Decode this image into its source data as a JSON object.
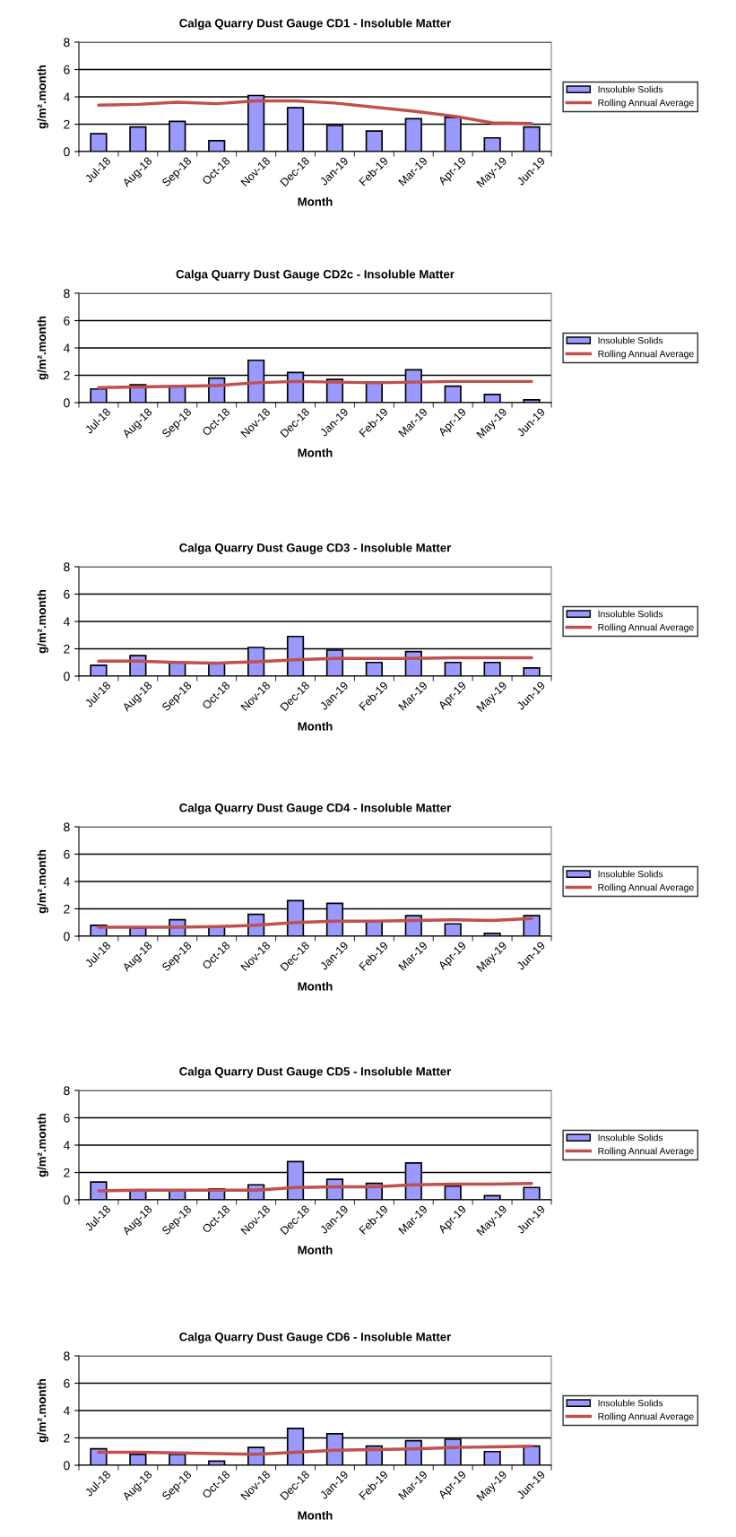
{
  "chart_data": [
    {
      "type": "bar",
      "title": "Calga Quarry Dust Gauge CD1 - Insoluble Matter",
      "xlabel": "Month",
      "ylabel": "g/m².month",
      "categories": [
        "Jul-18",
        "Aug-18",
        "Sep-18",
        "Oct-18",
        "Nov-18",
        "Dec-18",
        "Jan-19",
        "Feb-19",
        "Mar-19",
        "Apr-19",
        "May-19",
        "Jun-19"
      ],
      "ylim": [
        0,
        8
      ],
      "yticks": [
        0,
        2,
        4,
        6,
        8
      ],
      "grid": "y",
      "legend": "right",
      "series": [
        {
          "name": "Insoluble Solids",
          "color": "#9999ff",
          "values": [
            1.3,
            1.8,
            2.2,
            0.8,
            4.1,
            3.2,
            1.9,
            1.5,
            2.4,
            2.5,
            1.0,
            1.8
          ]
        },
        {
          "name": "Rolling Annual Average",
          "type": "line",
          "color": "#c0504d",
          "values": [
            3.4,
            3.45,
            3.6,
            3.5,
            3.7,
            3.7,
            3.55,
            3.25,
            2.95,
            2.6,
            2.1,
            2.05
          ]
        }
      ]
    },
    {
      "type": "bar",
      "title": "Calga Quarry Dust Gauge CD2c - Insoluble Matter",
      "xlabel": "Month",
      "ylabel": "g/m².month",
      "categories": [
        "Jul-18",
        "Aug-18",
        "Sep-18",
        "Oct-18",
        "Nov-18",
        "Dec-18",
        "Jan-19",
        "Feb-19",
        "Mar-19",
        "Apr-19",
        "May-19",
        "Jun-19"
      ],
      "ylim": [
        0,
        8
      ],
      "yticks": [
        0,
        2,
        4,
        6,
        8
      ],
      "grid": "y",
      "legend": "right",
      "series": [
        {
          "name": "Insoluble Solids",
          "color": "#9999ff",
          "values": [
            1.0,
            1.3,
            1.2,
            1.8,
            3.1,
            2.2,
            1.7,
            1.5,
            2.4,
            1.2,
            0.6,
            0.2
          ]
        },
        {
          "name": "Rolling Annual Average",
          "type": "line",
          "color": "#c0504d",
          "values": [
            1.1,
            1.15,
            1.2,
            1.25,
            1.45,
            1.55,
            1.5,
            1.45,
            1.5,
            1.55,
            1.55,
            1.55
          ]
        }
      ]
    },
    {
      "type": "bar",
      "title": "Calga Quarry Dust Gauge CD3 - Insoluble Matter",
      "xlabel": "Month",
      "ylabel": "g/m².month",
      "categories": [
        "Jul-18",
        "Aug-18",
        "Sep-18",
        "Oct-18",
        "Nov-18",
        "Dec-18",
        "Jan-19",
        "Feb-19",
        "Mar-19",
        "Apr-19",
        "May-19",
        "Jun-19"
      ],
      "ylim": [
        0,
        8
      ],
      "yticks": [
        0,
        2,
        4,
        6,
        8
      ],
      "grid": "y",
      "legend": "right",
      "series": [
        {
          "name": "Insoluble Solids",
          "color": "#9999ff",
          "values": [
            0.8,
            1.5,
            1.0,
            0.9,
            2.1,
            2.9,
            1.9,
            1.0,
            1.8,
            1.0,
            1.0,
            0.6
          ]
        },
        {
          "name": "Rolling Annual Average",
          "type": "line",
          "color": "#c0504d",
          "values": [
            1.1,
            1.1,
            1.0,
            0.95,
            1.05,
            1.2,
            1.3,
            1.3,
            1.3,
            1.35,
            1.35,
            1.35
          ]
        }
      ]
    },
    {
      "type": "bar",
      "title": "Calga Quarry Dust Gauge CD4 - Insoluble Matter",
      "xlabel": "Month",
      "ylabel": "g/m².month",
      "categories": [
        "Jul-18",
        "Aug-18",
        "Sep-18",
        "Oct-18",
        "Nov-18",
        "Dec-18",
        "Jan-19",
        "Feb-19",
        "Mar-19",
        "Apr-19",
        "May-19",
        "Jun-19"
      ],
      "ylim": [
        0,
        8
      ],
      "yticks": [
        0,
        2,
        4,
        6,
        8
      ],
      "grid": "y",
      "legend": "right",
      "series": [
        {
          "name": "Insoluble Solids",
          "color": "#9999ff",
          "values": [
            0.8,
            0.6,
            1.2,
            0.7,
            1.6,
            2.6,
            2.4,
            1.1,
            1.5,
            0.9,
            0.2,
            1.5
          ]
        },
        {
          "name": "Rolling Annual Average",
          "type": "line",
          "color": "#c0504d",
          "values": [
            0.65,
            0.65,
            0.65,
            0.7,
            0.8,
            1.0,
            1.1,
            1.1,
            1.15,
            1.2,
            1.15,
            1.3
          ]
        }
      ]
    },
    {
      "type": "bar",
      "title": "Calga Quarry Dust Gauge CD5 - Insoluble Matter",
      "xlabel": "Month",
      "ylabel": "g/m².month",
      "categories": [
        "Jul-18",
        "Aug-18",
        "Sep-18",
        "Oct-18",
        "Nov-18",
        "Dec-18",
        "Jan-19",
        "Feb-19",
        "Mar-19",
        "Apr-19",
        "May-19",
        "Jun-19"
      ],
      "ylim": [
        0,
        8
      ],
      "yticks": [
        0,
        2,
        4,
        6,
        8
      ],
      "grid": "y",
      "legend": "right",
      "series": [
        {
          "name": "Insoluble Solids",
          "color": "#9999ff",
          "values": [
            1.3,
            0.7,
            0.7,
            0.8,
            1.1,
            2.8,
            1.5,
            1.2,
            2.7,
            1.0,
            0.3,
            0.9
          ]
        },
        {
          "name": "Rolling Annual Average",
          "type": "line",
          "color": "#c0504d",
          "values": [
            0.65,
            0.7,
            0.7,
            0.7,
            0.7,
            0.9,
            0.95,
            0.95,
            1.1,
            1.15,
            1.15,
            1.2
          ]
        }
      ]
    },
    {
      "type": "bar",
      "title": "Calga Quarry Dust Gauge CD6 - Insoluble Matter",
      "xlabel": "Month",
      "ylabel": "g/m².month",
      "categories": [
        "Jul-18",
        "Aug-18",
        "Sep-18",
        "Oct-18",
        "Nov-18",
        "Dec-18",
        "Jan-19",
        "Feb-19",
        "Mar-19",
        "Apr-19",
        "May-19",
        "Jun-19"
      ],
      "ylim": [
        0,
        8
      ],
      "yticks": [
        0,
        2,
        4,
        6,
        8
      ],
      "grid": "y",
      "legend": "right",
      "series": [
        {
          "name": "Insoluble Solids",
          "color": "#9999ff",
          "values": [
            1.2,
            0.8,
            0.8,
            0.3,
            1.3,
            2.7,
            2.3,
            1.4,
            1.8,
            1.9,
            1.0,
            1.4
          ]
        },
        {
          "name": "Rolling Annual Average",
          "type": "line",
          "color": "#c0504d",
          "values": [
            0.95,
            0.95,
            0.9,
            0.85,
            0.8,
            0.95,
            1.1,
            1.15,
            1.2,
            1.3,
            1.35,
            1.4
          ]
        }
      ]
    }
  ]
}
